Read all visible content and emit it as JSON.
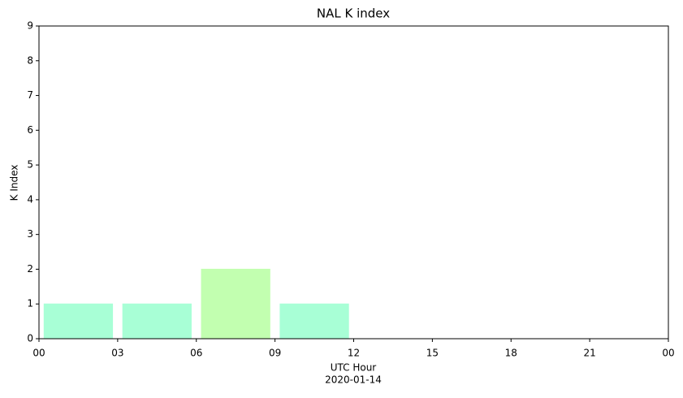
{
  "chart_data": {
    "type": "bar",
    "title": "NAL K index",
    "xlabel_lines": [
      "UTC Hour",
      "2020-01-14"
    ],
    "ylabel": "K Index",
    "x": [
      0,
      3,
      6,
      9
    ],
    "values": [
      1,
      1,
      2,
      1
    ],
    "colors": [
      "#a8ffd6",
      "#a8ffd6",
      "#c2ffb0",
      "#a8ffd6"
    ],
    "xlim": [
      0,
      24
    ],
    "xticks": [
      {
        "value": 0,
        "label": "00"
      },
      {
        "value": 3,
        "label": "03"
      },
      {
        "value": 6,
        "label": "06"
      },
      {
        "value": 9,
        "label": "09"
      },
      {
        "value": 12,
        "label": "12"
      },
      15,
      18,
      21,
      {
        "value": 24,
        "label": "00"
      }
    ],
    "ylim": [
      0,
      9
    ],
    "yticks": [
      0,
      1,
      2,
      3,
      4,
      5,
      6,
      7,
      8,
      9
    ],
    "grid": false
  }
}
